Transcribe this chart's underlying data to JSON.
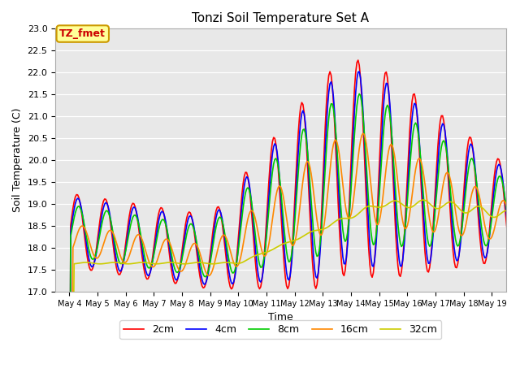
{
  "title": "Tonzi Soil Temperature Set A",
  "xlabel": "Time",
  "ylabel": "Soil Temperature (C)",
  "ylim": [
    17.0,
    23.0
  ],
  "yticks": [
    17.0,
    17.5,
    18.0,
    18.5,
    19.0,
    19.5,
    20.0,
    20.5,
    21.0,
    21.5,
    22.0,
    22.5,
    23.0
  ],
  "annotation_text": "TZ_fmet",
  "annotation_color": "#cc0000",
  "annotation_bg": "#ffff99",
  "annotation_border": "#cc9900",
  "background_color": "#e8e8e8",
  "legend_entries": [
    "2cm",
    "4cm",
    "8cm",
    "16cm",
    "32cm"
  ],
  "line_colors": [
    "#ff0000",
    "#0000ff",
    "#00cc00",
    "#ff8800",
    "#cccc00"
  ],
  "xtick_positions": [
    4,
    5,
    6,
    7,
    8,
    9,
    10,
    11,
    12,
    13,
    14,
    15,
    16,
    17,
    18,
    19
  ],
  "xtick_labels": [
    "May 4",
    "May 5",
    "May 6",
    "May 7",
    "May 8",
    "May 9",
    "May 10",
    "May 11",
    "May 12",
    "May 13",
    "May 14",
    "May 15",
    "May 16",
    "May 17",
    "May 18",
    "May 19"
  ]
}
